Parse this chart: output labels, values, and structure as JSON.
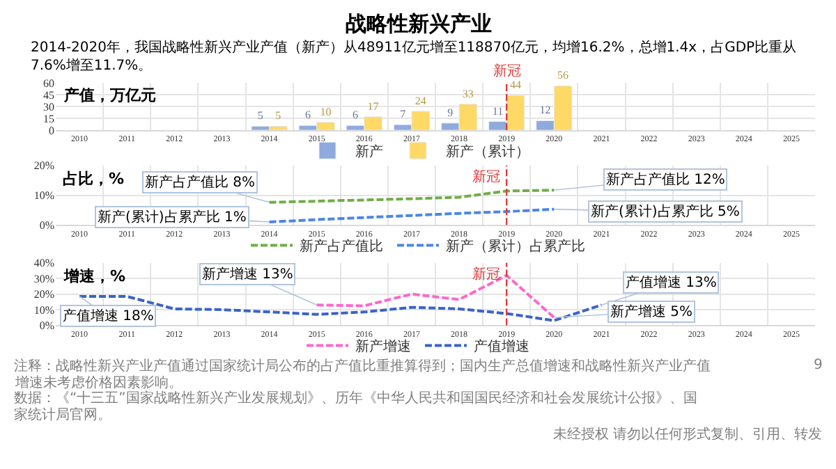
{
  "chart_data": [
    {
      "type": "bar",
      "title": "战略性新兴产业",
      "subtitle": "2014-2020年，我国战略性新兴产业产值（新产）从48911亿元增至118870亿元，均增16.2%，总增1.4x，占GDP比重从7.6%增至11.7%。",
      "ylabel": "产值，万亿元",
      "categories": [
        "2010",
        "2011",
        "2012",
        "2013",
        "2014",
        "2015",
        "2016",
        "2017",
        "2018",
        "2019",
        "2020",
        "2021",
        "2022",
        "2023",
        "2024",
        "2025"
      ],
      "series": [
        {
          "name": "新产",
          "color": "#8faadc",
          "values": [
            null,
            null,
            null,
            null,
            5,
            6,
            6,
            7,
            9,
            11,
            12,
            null,
            null,
            null,
            null,
            null
          ]
        },
        {
          "name": "新产（累计）",
          "color": "#ffd966",
          "values": [
            null,
            null,
            null,
            null,
            5,
            10,
            17,
            24,
            33,
            44,
            56,
            null,
            null,
            null,
            null,
            null
          ]
        }
      ],
      "ylim": [
        0,
        60
      ],
      "yticks": [
        0,
        15,
        30,
        45,
        60
      ],
      "data_labels": true,
      "grid": true,
      "legend": "bottom",
      "ref_lines": [
        {
          "axis": "x",
          "value": "2019",
          "label": "新冠",
          "color": "#e03c3c",
          "line_style": "dashed"
        }
      ]
    },
    {
      "type": "line",
      "ylabel": "占比，%",
      "categories": [
        "2010",
        "2011",
        "2012",
        "2013",
        "2014",
        "2015",
        "2016",
        "2017",
        "2018",
        "2019",
        "2020",
        "2021",
        "2022",
        "2023",
        "2024",
        "2025"
      ],
      "series": [
        {
          "name": "新产占产值比",
          "color": "#70ad47",
          "values": [
            null,
            null,
            null,
            null,
            7.6,
            8.0,
            8.4,
            8.8,
            9.3,
            11.4,
            11.7,
            null,
            null,
            null,
            null,
            null
          ]
        },
        {
          "name": "新产（累计）占累产比",
          "color": "#4a86e8",
          "values": [
            null,
            null,
            null,
            null,
            1.0,
            1.8,
            2.5,
            3.2,
            3.9,
            4.5,
            5.3,
            null,
            null,
            null,
            null,
            null
          ]
        }
      ],
      "ylim": [
        0,
        20
      ],
      "yticks": [
        {
          "value": 0,
          "label": "0%"
        },
        {
          "value": 10,
          "label": "10%"
        },
        {
          "value": 20,
          "label": "20%"
        }
      ],
      "line_style": "dashed",
      "grid": true,
      "legend": "bottom",
      "ref_lines": [
        {
          "axis": "x",
          "value": "2019",
          "label": "新冠",
          "color": "#e03c3c",
          "line_style": "dashed"
        }
      ],
      "annotations": [
        {
          "text": "新产占产值比 8%",
          "x": "2014",
          "y": 7.6
        },
        {
          "text": "新产占产值比 12%",
          "x": "2020",
          "y": 11.7
        },
        {
          "text": "新产(累计)占累产比 1%",
          "x": "2014",
          "y": 1.0
        },
        {
          "text": "新产(累计)占累产比 5%",
          "x": "2020",
          "y": 5.3
        }
      ]
    },
    {
      "type": "line",
      "ylabel": "增速，%",
      "categories": [
        "2010",
        "2011",
        "2012",
        "2013",
        "2014",
        "2015",
        "2016",
        "2017",
        "2018",
        "2019",
        "2020",
        "2021",
        "2022",
        "2023",
        "2024",
        "2025"
      ],
      "series": [
        {
          "name": "新产增速",
          "color": "#ff66cc",
          "values": [
            null,
            null,
            null,
            null,
            null,
            13,
            12.5,
            20,
            16.5,
            32,
            5,
            null,
            null,
            null,
            null,
            null
          ]
        },
        {
          "name": "产值增速",
          "color": "#3a62c9",
          "values": [
            18.5,
            18.5,
            10.5,
            10,
            8.5,
            7,
            8.5,
            11.5,
            10.5,
            7.5,
            3,
            13,
            null,
            null,
            null,
            null
          ]
        }
      ],
      "ylim": [
        0,
        40
      ],
      "yticks": [
        {
          "value": 0,
          "label": "0%"
        },
        {
          "value": 10,
          "label": "10%"
        },
        {
          "value": 20,
          "label": "20%"
        },
        {
          "value": 30,
          "label": "30%"
        },
        {
          "value": 40,
          "label": "40%"
        }
      ],
      "line_style": "dashed",
      "grid": true,
      "legend": "bottom",
      "ref_lines": [
        {
          "axis": "x",
          "value": "2019",
          "label": "新冠",
          "color": "#e03c3c",
          "line_style": "dashed"
        }
      ],
      "annotations": [
        {
          "text": "新产增速 13%",
          "x": "2015",
          "y": 13
        },
        {
          "text": "产值增速 18%",
          "x": "2010",
          "y": 18.5
        },
        {
          "text": "产值增速 13%",
          "x": "2021",
          "y": 13
        },
        {
          "text": "新产增速 5%",
          "x": "2020",
          "y": 5
        },
        "注释：战略性新兴产业产值通过国家统计局公布的占产值比重推算得到；国内生产总值增速和战略性新兴产业产值增速未考虑价格因素影响。",
        "数据：《“十三五”国家战略性新兴产业发展规划》、历年《中华人民共和国国民经济和社会发展统计公报》、国家统计局官网。",
        "9",
        "未经授权 请勿以任何形式复制、引用、转发"
      ]
    }
  ]
}
